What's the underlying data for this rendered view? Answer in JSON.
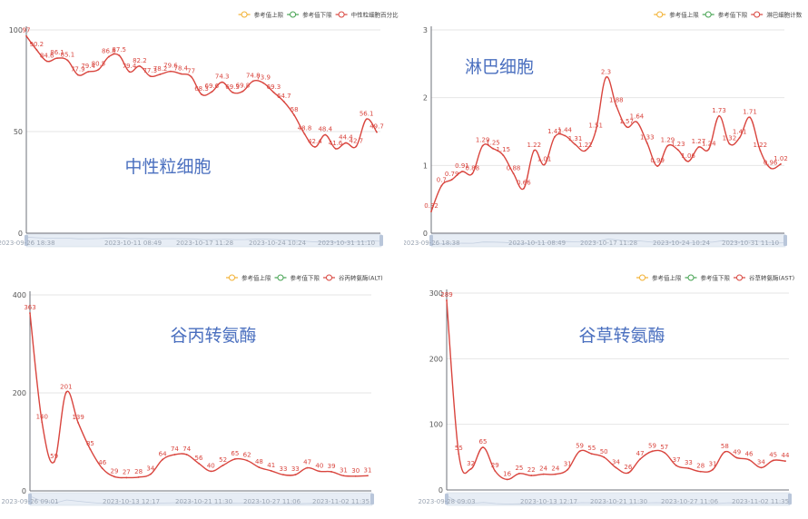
{
  "legend_items": [
    "参考值上限",
    "参考值下限"
  ],
  "legend_colors": [
    "#f2b132",
    "#46a352"
  ],
  "series_color": "#d9453e",
  "chart_data": [
    {
      "type": "line",
      "title": "中性粒细胞",
      "series": [
        {
          "name": "中性粒细胞百分比",
          "values": [
            97,
            90.2,
            84.6,
            86.1,
            85.1,
            77.9,
            79.4,
            80.5,
            86.8,
            87.5,
            79.4,
            82.2,
            77.3,
            78.2,
            79.6,
            78.4,
            77,
            68.3,
            69.6,
            74.3,
            69.3,
            69.8,
            74.8,
            73.9,
            69.3,
            64.7,
            58,
            48.8,
            42.4,
            48.4,
            41.6,
            44.4,
            42.7,
            56.1,
            49.7
          ]
        }
      ],
      "ylim": [
        0,
        100
      ],
      "yticks": [
        0,
        50,
        100
      ],
      "xticks": [
        "2023-09-26 18:38",
        "2023-10-11 08:49",
        "2023-10-17 11:28",
        "2023-10-24 10:24",
        "2023-10-31 11:10"
      ],
      "labels": [
        "97",
        "90.2",
        "84.6",
        "86.1",
        "85.1",
        "77.9",
        "79.4",
        "80.5",
        "86.8",
        "87.5",
        "79.4",
        "82.2",
        "77.3",
        "78.2",
        "79.6",
        "78.4",
        "77",
        "68.3",
        "69.6",
        "74.3",
        "69.3",
        "69.8",
        "74.8",
        "73.9",
        "69.3",
        "64.7",
        "58",
        "48.8",
        "42.4",
        "48.4",
        "41.6",
        "44.4",
        "42.7",
        "56.1",
        "49.7"
      ]
    },
    {
      "type": "line",
      "title": "淋巴细胞",
      "series": [
        {
          "name": "淋巴细胞计数",
          "values": [
            0.32,
            0.7,
            0.79,
            0.91,
            0.88,
            1.29,
            1.25,
            1.15,
            0.88,
            0.66,
            1.22,
            1.01,
            1.42,
            1.44,
            1.31,
            1.22,
            1.51,
            2.3,
            1.88,
            1.57,
            1.64,
            1.33,
            0.99,
            1.29,
            1.23,
            1.06,
            1.27,
            1.24,
            1.73,
            1.32,
            1.41,
            1.71,
            1.22,
            0.96,
            1.02
          ]
        }
      ],
      "ylim": [
        0,
        3
      ],
      "yticks": [
        0,
        1,
        2,
        3
      ],
      "xticks": [
        "2023-09-26 18:38",
        "2023-10-11 08:49",
        "2023-10-17 11:28",
        "2023-10-24 10:24",
        "2023-10-31 11:10"
      ],
      "labels": [
        "0.32",
        "0.7",
        "0.79",
        "0.91",
        "0.88",
        "1.29",
        "1.25",
        "1.15",
        "0.88",
        "0.66",
        "1.22",
        "1.01",
        "1.42",
        "1.44",
        "1.31",
        "1.22",
        "1.51",
        "2.3",
        "1.88",
        "1.57",
        "1.64",
        "1.33",
        "0.99",
        "1.29",
        "1.23",
        "1.06",
        "1.27",
        "1.24",
        "1.73",
        "1.32",
        "1.41",
        "1.71",
        "1.22",
        "0.96",
        "1.02"
      ]
    },
    {
      "type": "line",
      "title": "谷丙转氨酶",
      "series": [
        {
          "name": "谷丙转氨酶(ALT)",
          "values": [
            363,
            140,
            59,
            201,
            139,
            85,
            46,
            29,
            27,
            28,
            34,
            64,
            74,
            74,
            56,
            40,
            52,
            65,
            62,
            48,
            41,
            33,
            33,
            47,
            40,
            39,
            31,
            30,
            31
          ]
        }
      ],
      "ylim": [
        0,
        400
      ],
      "yticks": [
        0,
        200,
        400
      ],
      "xticks": [
        "2023-09-26 09:01",
        "2023-10-13 12:17",
        "2023-10-21 11:30",
        "2023-10-27 11:06",
        "2023-11-02 11:35"
      ],
      "labels": [
        "363",
        "140",
        "59",
        "201",
        "139",
        "85",
        "46",
        "29",
        "27",
        "28",
        "34",
        "64",
        "74",
        "74",
        "56",
        "40",
        "52",
        "65",
        "62",
        "48",
        "41",
        "33",
        "33",
        "47",
        "40",
        "39",
        "31",
        "30",
        "31"
      ]
    },
    {
      "type": "line",
      "title": "谷草转氨酶",
      "series": [
        {
          "name": "谷草转氨酶(AST)",
          "values": [
            289,
            55,
            32,
            65,
            29,
            16,
            25,
            22,
            24,
            24,
            31,
            59,
            55,
            50,
            34,
            26,
            47,
            59,
            57,
            37,
            33,
            28,
            31,
            58,
            49,
            46,
            34,
            45,
            44
          ]
        }
      ],
      "ylim": [
        0,
        300
      ],
      "yticks": [
        0,
        100,
        200,
        300
      ],
      "xticks": [
        "2023-09-28 09:03",
        "2023-10-13 12:17",
        "2023-10-21 11:30",
        "2023-10-27 11:06",
        "2023-11-02 11:35"
      ],
      "labels": [
        "289",
        "55",
        "32",
        "65",
        "29",
        "16",
        "25",
        "22",
        "24",
        "24",
        "31",
        "59",
        "55",
        "50",
        "34",
        "26",
        "47",
        "59",
        "57",
        "37",
        "33",
        "28",
        "31",
        "58",
        "49",
        "46",
        "34",
        "45",
        "44"
      ]
    }
  ]
}
